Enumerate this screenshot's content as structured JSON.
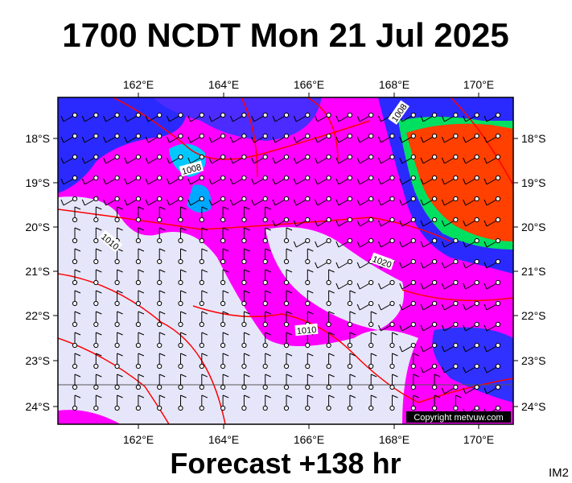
{
  "title": "1700 NCDT Mon 21 Jul 2025",
  "footer": "Forecast +138 hr",
  "corner_label": "IM2",
  "copyright": "Copyright metvuw.com",
  "map": {
    "longitude_labels": [
      "162°E",
      "164°E",
      "166°E",
      "168°E",
      "170°E"
    ],
    "latitude_labels": [
      "18°S",
      "19°S",
      "20°S",
      "21°S",
      "22°S",
      "23°S",
      "24°S"
    ],
    "isobar_labels": [
      "1008",
      "1008",
      "1010",
      "1010",
      "1020"
    ]
  }
}
